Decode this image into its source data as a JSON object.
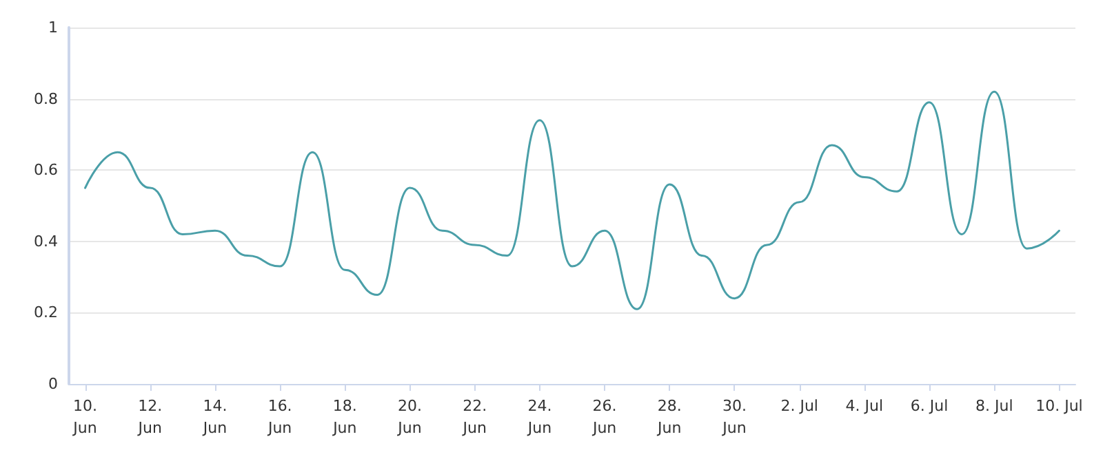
{
  "chart_data": {
    "type": "line",
    "x": [
      "--06-10",
      "--06-11",
      "--06-12",
      "--06-13",
      "--06-14",
      "--06-15",
      "--06-16",
      "--06-17",
      "--06-18",
      "--06-19",
      "--06-20",
      "--06-21",
      "--06-22",
      "--06-23",
      "--06-24",
      "--06-25",
      "--06-26",
      "--06-27",
      "--06-28",
      "--06-29",
      "--06-30",
      "--07-01",
      "--07-02",
      "--07-03",
      "--07-04",
      "--07-05",
      "--07-06",
      "--07-07",
      "--07-08",
      "--07-09",
      "--07-10"
    ],
    "series": [
      {
        "color": "#4a9fa8",
        "values": [
          0.55,
          0.65,
          0.55,
          0.42,
          0.43,
          0.36,
          0.33,
          0.65,
          0.32,
          0.25,
          0.55,
          0.43,
          0.39,
          0.36,
          0.74,
          0.33,
          0.43,
          0.21,
          0.56,
          0.36,
          0.24,
          0.39,
          0.51,
          0.67,
          0.58,
          0.54,
          0.79,
          0.42,
          0.82,
          0.38,
          0.43
        ]
      }
    ],
    "xlim": [
      "--06-09T12:00",
      "--07-10T12:00"
    ],
    "xticks": [
      {
        "value": "--06-10",
        "label": "10.\nJun"
      },
      {
        "value": "--06-12",
        "label": "12.\nJun"
      },
      {
        "value": "--06-14",
        "label": "14.\nJun"
      },
      {
        "value": "--06-16",
        "label": "16.\nJun"
      },
      {
        "value": "--06-18",
        "label": "18.\nJun"
      },
      {
        "value": "--06-20",
        "label": "20.\nJun"
      },
      {
        "value": "--06-22",
        "label": "22.\nJun"
      },
      {
        "value": "--06-24",
        "label": "24.\nJun"
      },
      {
        "value": "--06-26",
        "label": "26.\nJun"
      },
      {
        "value": "--06-28",
        "label": "28.\nJun"
      },
      {
        "value": "--06-30",
        "label": "30.\nJun"
      },
      {
        "value": "--07-02",
        "label": "2. Jul"
      },
      {
        "value": "--07-04",
        "label": "4. Jul"
      },
      {
        "value": "--07-06",
        "label": "6. Jul"
      },
      {
        "value": "--07-08",
        "label": "8. Jul"
      },
      {
        "value": "--07-10",
        "label": "10. Jul"
      }
    ],
    "ylim": [
      0,
      1
    ],
    "yticks": [
      0,
      0.2,
      0.4,
      0.6,
      0.8,
      1
    ],
    "grid": "y",
    "marker": "none",
    "line_style": "solid"
  }
}
